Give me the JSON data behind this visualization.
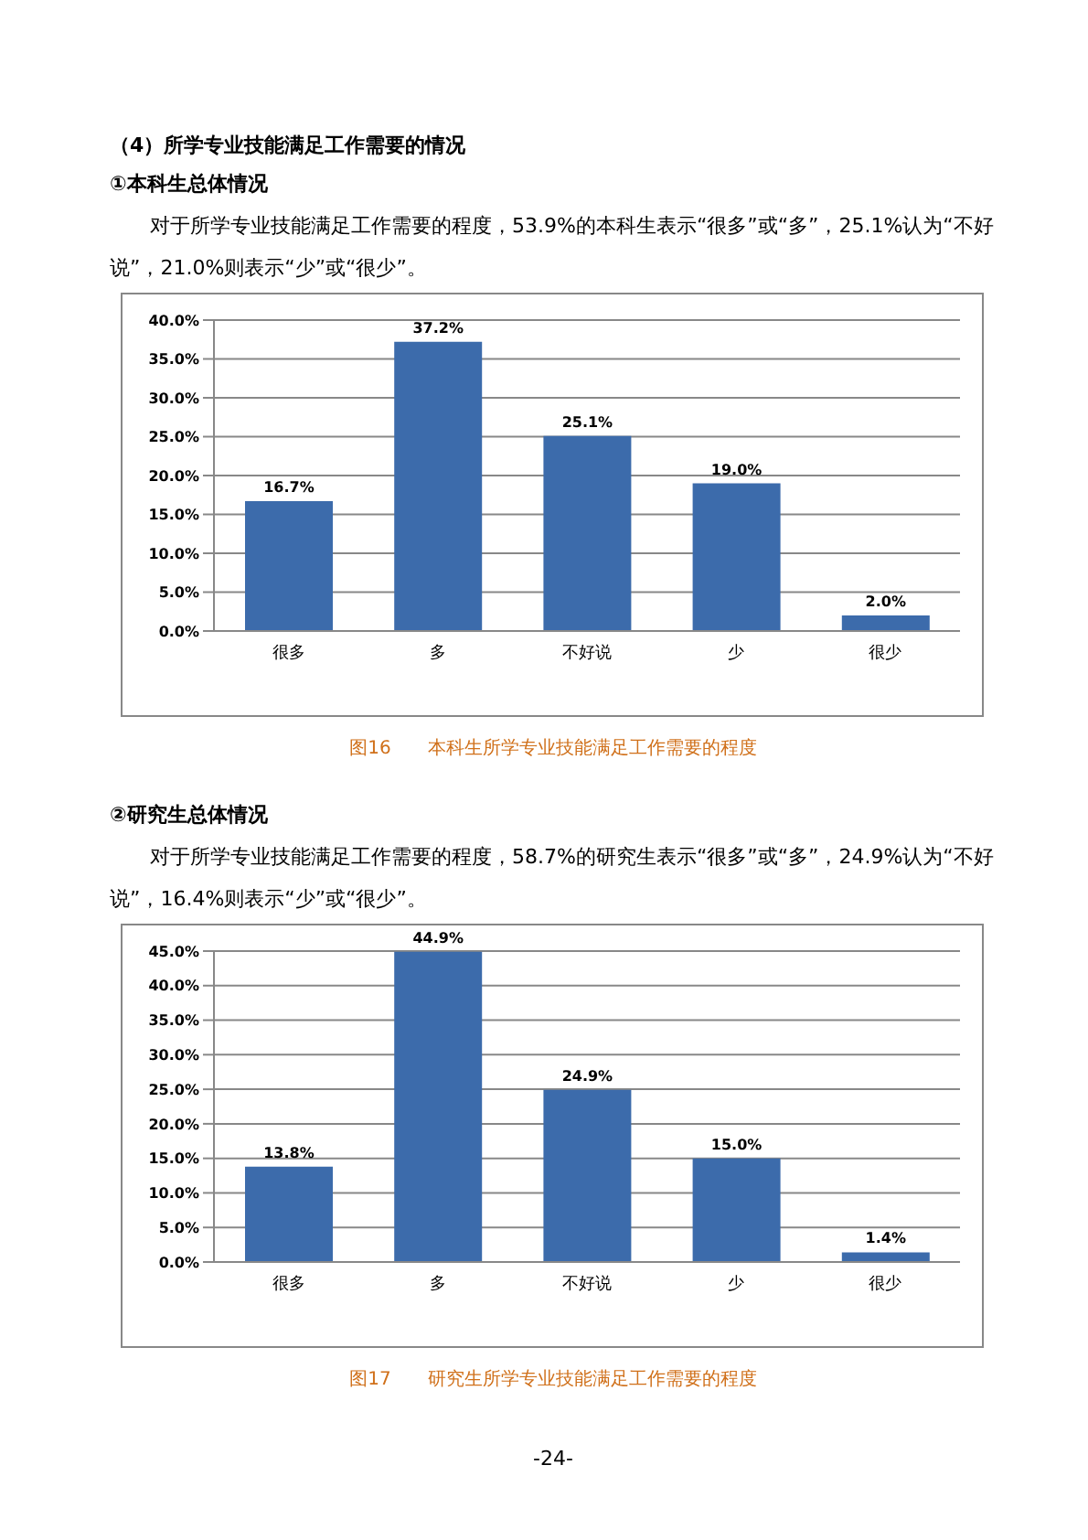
{
  "chart_data": [
    {
      "type": "bar",
      "title": "（4）所学专业技能满足工作需要的情况",
      "subtitle": "①本科生总体情况",
      "annotations": [
        "对于所学专业技能满足工作需要的程度，53.9%的本科生表示“很多”或“多”，25.1%认为“不好说”，21.0%则表示“少”或“很少”。",
        "图16　　本科生所学专业技能满足工作需要的程度"
      ],
      "categories": [
        "很多",
        "多",
        "不好说",
        "少",
        "很少"
      ],
      "values": [
        16.7,
        37.2,
        25.1,
        19.0,
        2.0
      ],
      "value_labels": [
        "16.7%",
        "37.2%",
        "25.1%",
        "19.0%",
        "2.0%"
      ],
      "color": "#3c6bab",
      "ylim": [
        0,
        40
      ],
      "yticks": [
        {
          "value": 0,
          "label": "0.0%"
        },
        {
          "value": 5,
          "label": "5.0%"
        },
        {
          "value": 10,
          "label": "10.0%"
        },
        {
          "value": 15,
          "label": "15.0%"
        },
        {
          "value": 20,
          "label": "20.0%"
        },
        {
          "value": 25,
          "label": "25.0%"
        },
        {
          "value": 30,
          "label": "30.0%"
        },
        {
          "value": 35,
          "label": "35.0%"
        },
        {
          "value": 40,
          "label": "40.0%"
        }
      ],
      "grid": "y"
    },
    {
      "type": "bar",
      "title": "②研究生总体情况",
      "annotations": [
        "对于所学专业技能满足工作需要的程度，58.7%的研究生表示“很多”或“多”，24.9%认为“不好说”，16.4%则表示“少”或“很少”。",
        "图17　　研究生所学专业技能满足工作需要的程度",
        "-24-"
      ],
      "categories": [
        "很多",
        "多",
        "不好说",
        "少",
        "很少"
      ],
      "values": [
        13.8,
        44.9,
        24.9,
        15.0,
        1.4
      ],
      "value_labels": [
        "13.8%",
        "44.9%",
        "24.9%",
        "15.0%",
        "1.4%"
      ],
      "color": "#3c6bab",
      "ylim": [
        0,
        45
      ],
      "yticks": [
        {
          "value": 0,
          "label": "0.0%"
        },
        {
          "value": 5,
          "label": "5.0%"
        },
        {
          "value": 10,
          "label": "10.0%"
        },
        {
          "value": 15,
          "label": "15.0%"
        },
        {
          "value": 20,
          "label": "20.0%"
        },
        {
          "value": 25,
          "label": "25.0%"
        },
        {
          "value": 30,
          "label": "30.0%"
        },
        {
          "value": 35,
          "label": "35.0%"
        },
        {
          "value": 40,
          "label": "40.0%"
        },
        {
          "value": 45,
          "label": "45.0%"
        }
      ],
      "grid": "y"
    }
  ]
}
